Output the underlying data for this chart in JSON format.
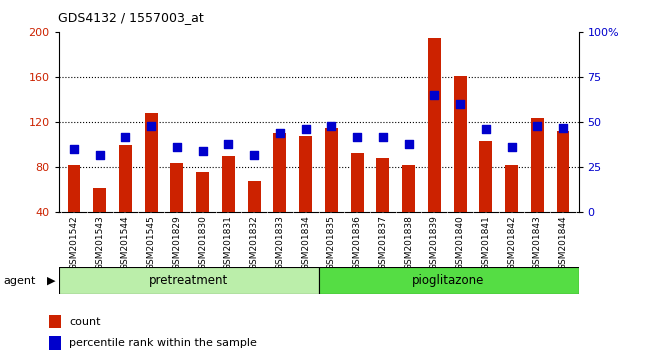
{
  "title": "GDS4132 / 1557003_at",
  "samples": [
    "GSM201542",
    "GSM201543",
    "GSM201544",
    "GSM201545",
    "GSM201829",
    "GSM201830",
    "GSM201831",
    "GSM201832",
    "GSM201833",
    "GSM201834",
    "GSM201835",
    "GSM201836",
    "GSM201837",
    "GSM201838",
    "GSM201839",
    "GSM201840",
    "GSM201841",
    "GSM201842",
    "GSM201843",
    "GSM201844"
  ],
  "counts": [
    82,
    62,
    100,
    128,
    84,
    76,
    90,
    68,
    110,
    108,
    115,
    93,
    88,
    82,
    195,
    161,
    103,
    82,
    124,
    112
  ],
  "percentiles": [
    35,
    32,
    42,
    48,
    36,
    34,
    38,
    32,
    44,
    46,
    48,
    42,
    42,
    38,
    65,
    60,
    46,
    36,
    48,
    47
  ],
  "bar_color": "#cc2200",
  "dot_color": "#0000cc",
  "ylim_left": [
    40,
    200
  ],
  "ylim_right": [
    0,
    100
  ],
  "yticks_left": [
    40,
    80,
    120,
    160,
    200
  ],
  "yticks_right": [
    0,
    25,
    50,
    75,
    100
  ],
  "ytick_labels_right": [
    "0",
    "25",
    "50",
    "75",
    "100%"
  ],
  "group1_label": "pretreatment",
  "group2_label": "pioglitazone",
  "n_group1": 10,
  "n_group2": 10,
  "agent_label": "agent",
  "legend_count": "count",
  "legend_percentile": "percentile rank within the sample",
  "plot_bg_color": "#ffffff",
  "xtick_bg_color": "#cccccc",
  "group_bg_pretreatment": "#bbeeaa",
  "group_bg_pioglitazone": "#55dd44",
  "bar_width": 0.5,
  "dot_size": 30
}
